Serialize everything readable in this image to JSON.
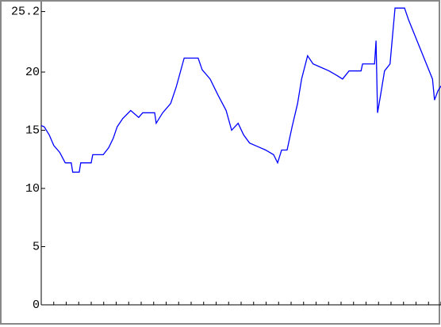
{
  "chart_data": {
    "type": "line",
    "x": [
      0,
      0.6,
      1.6,
      2.5,
      3.7,
      4.8,
      6.0,
      6.3,
      7.6,
      7.9,
      10.0,
      10.3,
      12.4,
      13.5,
      14.4,
      15.2,
      16.3,
      17.9,
      19.5,
      20.3,
      22.7,
      23.0,
      24.3,
      25.9,
      27.0,
      28.6,
      31.4,
      32.2,
      33.8,
      35.4,
      37.0,
      38.1,
      39.4,
      40.5,
      41.7,
      43.3,
      44.9,
      46.5,
      47.3,
      48.1,
      49.2,
      50.2,
      51.3,
      52.1,
      53.3,
      54.4,
      56.0,
      57.6,
      59.2,
      60.3,
      61.6,
      64.0,
      64.3,
      66.7,
      67.0,
      67.3,
      67.9,
      68.7,
      69.8,
      70.8,
      72.7,
      73.5,
      75.1,
      76.7,
      78.3,
      78.7,
      79.4,
      80.0
    ],
    "series": [
      {
        "color": "#0000ff",
        "values": [
          15.4,
          15.3,
          14.6,
          13.7,
          13.1,
          12.2,
          12.2,
          11.4,
          11.4,
          12.2,
          12.2,
          12.9,
          12.9,
          13.5,
          14.3,
          15.3,
          16.0,
          16.7,
          16.1,
          16.5,
          16.5,
          15.6,
          16.5,
          17.3,
          18.7,
          21.2,
          21.2,
          20.2,
          19.4,
          18.0,
          16.7,
          15.0,
          15.6,
          14.6,
          13.9,
          13.6,
          13.3,
          12.9,
          12.2,
          13.3,
          13.3,
          15.3,
          17.3,
          19.4,
          21.4,
          20.7,
          20.4,
          20.1,
          19.7,
          19.4,
          20.1,
          20.1,
          20.7,
          20.7,
          22.7,
          16.5,
          18.0,
          20.1,
          20.7,
          25.5,
          25.5,
          24.5,
          22.8,
          21.1,
          19.4,
          17.6,
          18.4,
          18.8
        ]
      }
    ],
    "xlim": [
      0,
      80
    ],
    "xticks": [
      0,
      2.5,
      5,
      7.5,
      10,
      12.5,
      15,
      17.5,
      20,
      22.5,
      25,
      27.5,
      30,
      32.5,
      35,
      37.5,
      40,
      42.5,
      45,
      47.5,
      50,
      52.5,
      55,
      57.5,
      60,
      62.5,
      65,
      67.5,
      70,
      72.5,
      75,
      77.5,
      80
    ],
    "ylim": [
      0,
      25.6
    ],
    "yticks": [
      0,
      5,
      10,
      15,
      20,
      25.2
    ]
  }
}
